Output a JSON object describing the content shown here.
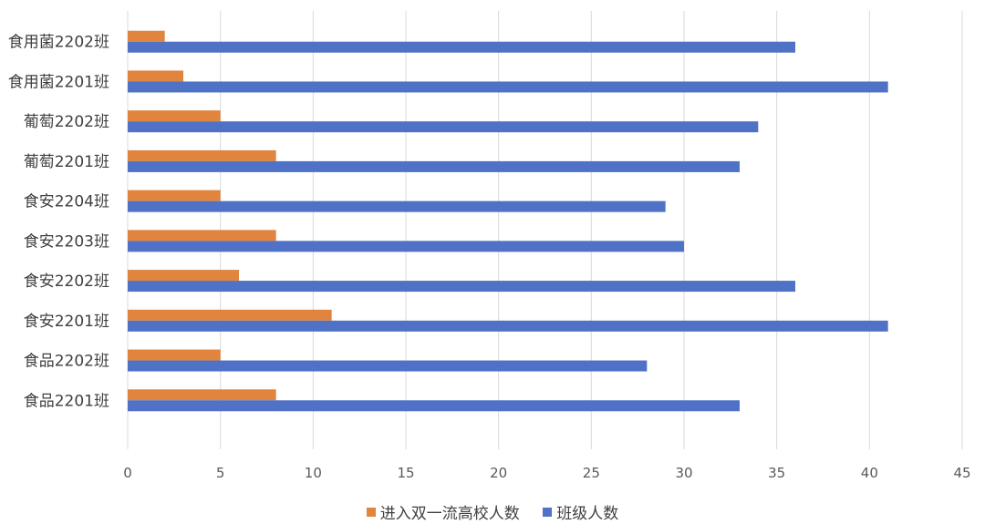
{
  "chart_data": {
    "type": "bar",
    "orientation": "horizontal",
    "title": "",
    "xlabel": "",
    "ylabel": "",
    "categories": [
      "食品2201班",
      "食品2202班",
      "食安2201班",
      "食安2202班",
      "食安2203班",
      "食安2204班",
      "葡萄2201班",
      "葡萄2202班",
      "食用菌2201班",
      "食用菌2202班"
    ],
    "series": [
      {
        "name": "进入双一流高校人数",
        "color": "#E0843E",
        "values": [
          8,
          5,
          11,
          6,
          8,
          5,
          8,
          5,
          3,
          2
        ]
      },
      {
        "name": "班级人数",
        "color": "#4F72C6",
        "values": [
          33,
          28,
          41,
          36,
          30,
          29,
          33,
          34,
          41,
          36
        ]
      }
    ],
    "xlim": [
      0,
      45
    ],
    "xticks": [
      0,
      5,
      10,
      15,
      20,
      25,
      30,
      35,
      40,
      45
    ],
    "grid": true,
    "legend_position": "bottom"
  }
}
